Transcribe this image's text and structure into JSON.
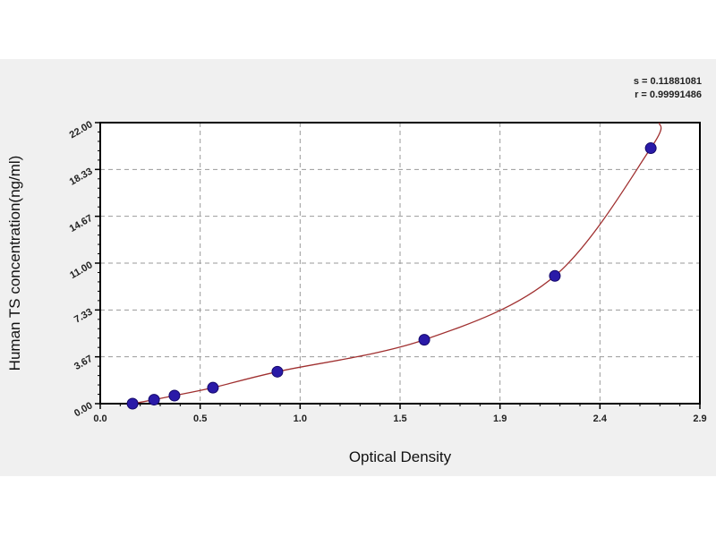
{
  "chart_data": {
    "type": "scatter",
    "title": "",
    "xlabel": "Optical Density",
    "ylabel": "Human TS concentration(ng/ml)",
    "xlim": [
      0,
      2.82
    ],
    "ylim": [
      0,
      22
    ],
    "x_tick_labels": [
      "0.0",
      "0.5",
      "1.0",
      "1.5",
      "1.9",
      "2.4",
      "2.9"
    ],
    "y_tick_labels": [
      "0.00",
      "3.67",
      "7.33",
      "11.00",
      "14.67",
      "18.33",
      "22.00"
    ],
    "grid": true,
    "points": [
      {
        "x": 0.152,
        "y": 0
      },
      {
        "x": 0.253,
        "y": 0.31
      },
      {
        "x": 0.349,
        "y": 0.63
      },
      {
        "x": 0.53,
        "y": 1.25
      },
      {
        "x": 0.833,
        "y": 2.5
      },
      {
        "x": 1.524,
        "y": 5
      },
      {
        "x": 2.138,
        "y": 10
      },
      {
        "x": 2.589,
        "y": 20
      }
    ],
    "fit_curve": true,
    "stats": {
      "s": "s = 0.11881081",
      "r": "r = 0.99991486"
    },
    "colors": {
      "points": "#2a1aa8",
      "curve": "#a03030",
      "grid": "#999999",
      "background": "#f0f0f0"
    }
  }
}
